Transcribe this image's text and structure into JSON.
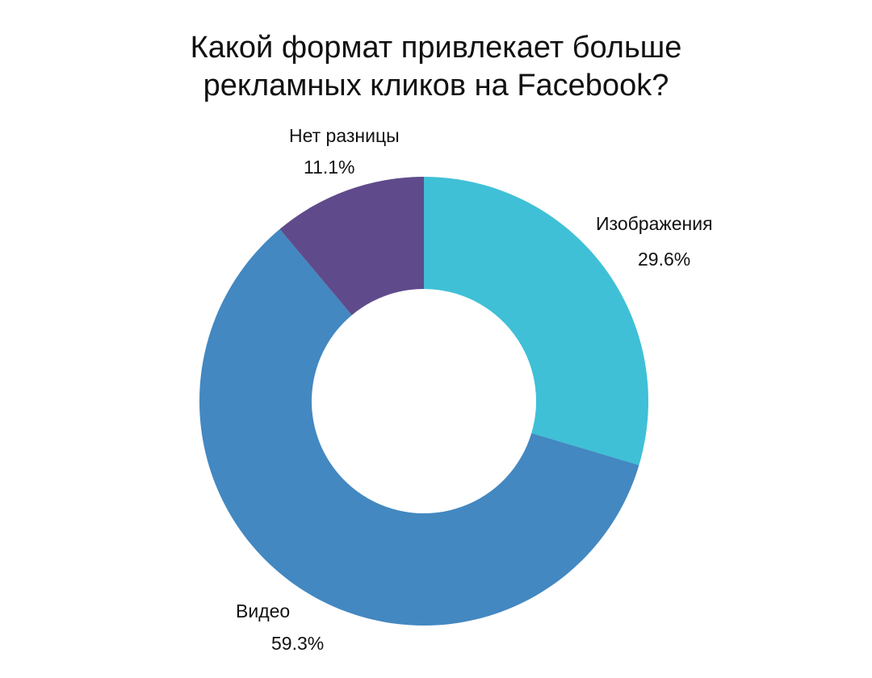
{
  "chart_data": {
    "type": "pie",
    "donut": true,
    "title_lines": [
      "Какой формат привлекает больше",
      "рекламных кликов на Facebook?"
    ],
    "slices": [
      {
        "label": "Изображения",
        "value": 29.6,
        "value_label": "29.6%",
        "color": "#3fc0d6"
      },
      {
        "label": "Видео",
        "value": 59.3,
        "value_label": "59.3%",
        "color": "#4388c1"
      },
      {
        "label": "Нет разницы",
        "value": 11.1,
        "value_label": "11.1%",
        "color": "#5f4b8b"
      }
    ],
    "start_angle": "top, clockwise"
  }
}
